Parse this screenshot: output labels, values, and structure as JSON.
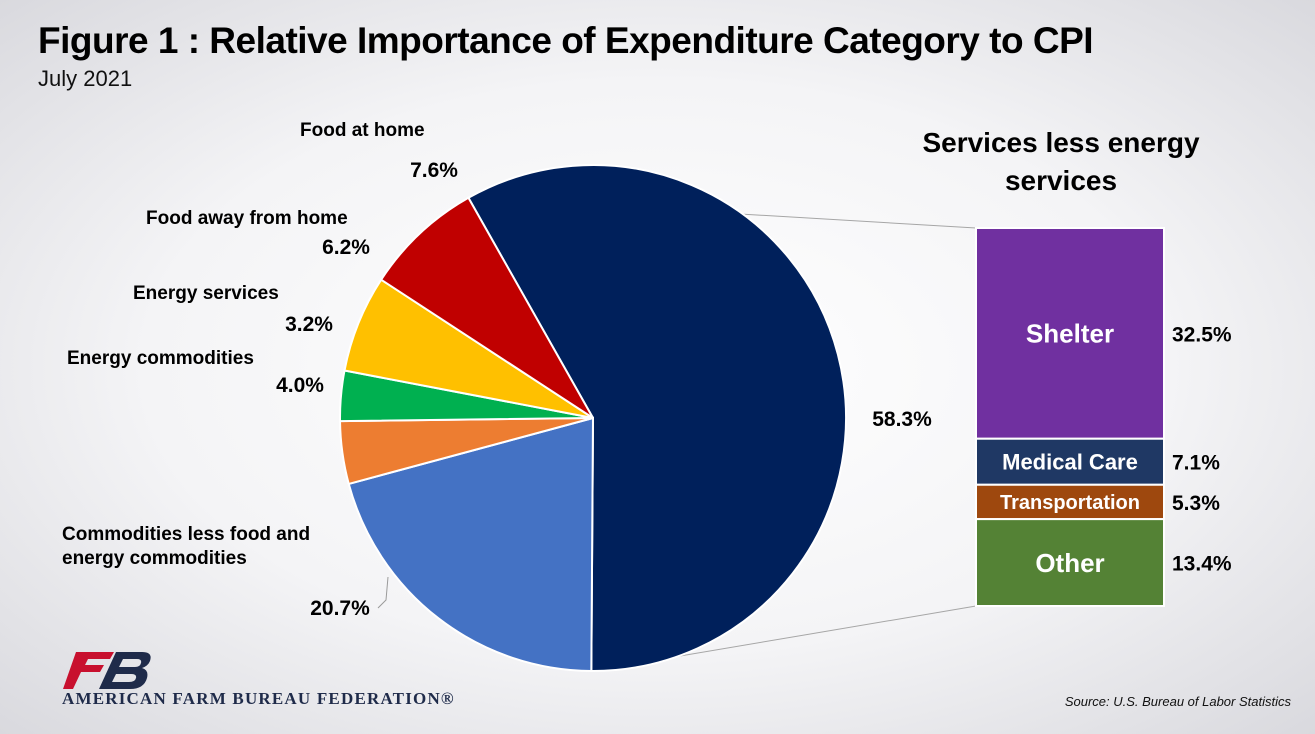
{
  "header": {
    "title": "Figure 1 : Relative Importance of Expenditure Category to CPI",
    "subtitle": "July 2021"
  },
  "chart_data": [
    {
      "type": "pie",
      "title": "Figure 1 : Relative Importance of Expenditure Category to CPI",
      "subtitle": "July 2021",
      "slices": [
        {
          "label": "Services less energy services",
          "value": 58.3,
          "value_label": "58.3%",
          "color": "#00205B",
          "show_label": false
        },
        {
          "label": "Commodities less food and energy commodities",
          "label_lines": [
            "Commodities less food and",
            "energy commodities"
          ],
          "value": 20.7,
          "value_label": "20.7%",
          "color": "#4472C4",
          "show_label": true
        },
        {
          "label": "Energy commodities",
          "label_lines": [
            "Energy commodities"
          ],
          "value": 4.0,
          "value_label": "4.0%",
          "color": "#ED7D31",
          "show_label": true
        },
        {
          "label": "Energy services",
          "label_lines": [
            "Energy services"
          ],
          "value": 3.2,
          "value_label": "3.2%",
          "color": "#00B050",
          "show_label": true
        },
        {
          "label": "Food away from home",
          "label_lines": [
            "Food away from home"
          ],
          "value": 6.2,
          "value_label": "6.2%",
          "color": "#FFC000",
          "show_label": true
        },
        {
          "label": "Food at home",
          "label_lines": [
            "Food at home"
          ],
          "value": 7.6,
          "value_label": "7.6%",
          "color": "#C00000",
          "show_label": true
        }
      ]
    },
    {
      "type": "bar",
      "stacked": true,
      "title_lines": [
        "Services less energy",
        "services"
      ],
      "title": "Services less energy services",
      "segments": [
        {
          "label": "Shelter",
          "value": 32.5,
          "value_label": "32.5%",
          "color": "#7030A0"
        },
        {
          "label": "Medical Care",
          "value": 7.1,
          "value_label": "7.1%",
          "color": "#1F3864"
        },
        {
          "label": "Transportation",
          "value": 5.3,
          "value_label": "5.3%",
          "color": "#9E480E"
        },
        {
          "label": "Other",
          "value": 13.4,
          "value_label": "13.4%",
          "color": "#548235"
        }
      ]
    }
  ],
  "footer": {
    "organization": "AMERICAN FARM BUREAU FEDERATION®",
    "logo_text": "FB",
    "source": "Source: U.S. Bureau of Labor Statistics"
  }
}
